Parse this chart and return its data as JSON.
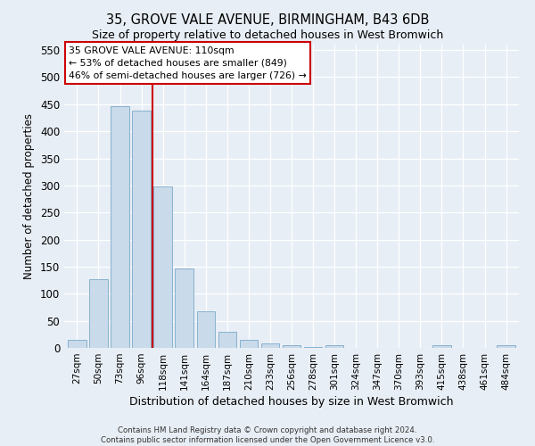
{
  "title": "35, GROVE VALE AVENUE, BIRMINGHAM, B43 6DB",
  "subtitle": "Size of property relative to detached houses in West Bromwich",
  "xlabel": "Distribution of detached houses by size in West Bromwich",
  "ylabel": "Number of detached properties",
  "bar_labels": [
    "27sqm",
    "50sqm",
    "73sqm",
    "96sqm",
    "118sqm",
    "141sqm",
    "164sqm",
    "187sqm",
    "210sqm",
    "233sqm",
    "256sqm",
    "278sqm",
    "301sqm",
    "324sqm",
    "347sqm",
    "370sqm",
    "393sqm",
    "415sqm",
    "438sqm",
    "461sqm",
    "484sqm"
  ],
  "bar_values": [
    15,
    127,
    447,
    438,
    298,
    146,
    68,
    29,
    15,
    8,
    5,
    1,
    5,
    0,
    0,
    0,
    0,
    5,
    0,
    0,
    5
  ],
  "bar_color": "#c9daea",
  "bar_edge_color": "#7aaac8",
  "vline_color": "#cc0000",
  "ylim": [
    0,
    560
  ],
  "yticks": [
    0,
    50,
    100,
    150,
    200,
    250,
    300,
    350,
    400,
    450,
    500,
    550
  ],
  "annotation_title": "35 GROVE VALE AVENUE: 110sqm",
  "annotation_line1": "← 53% of detached houses are smaller (849)",
  "annotation_line2": "46% of semi-detached houses are larger (726) →",
  "annotation_box_color": "#ffffff",
  "annotation_box_edge_color": "#cc0000",
  "footer_line1": "Contains HM Land Registry data © Crown copyright and database right 2024.",
  "footer_line2": "Contains public sector information licensed under the Open Government Licence v3.0.",
  "background_color": "#e8eef5",
  "grid_color": "#ffffff",
  "title_fontsize": 10.5,
  "subtitle_fontsize": 9
}
